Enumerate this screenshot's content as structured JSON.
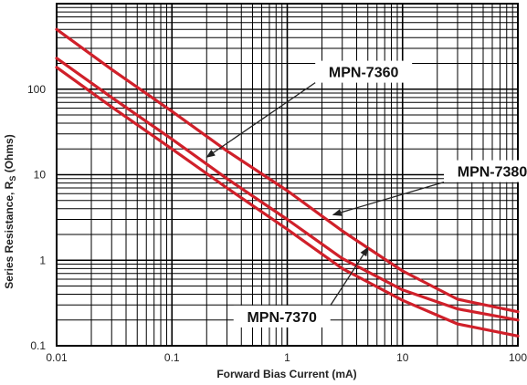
{
  "chart_data": {
    "type": "line",
    "title": "",
    "xlabel": "Forward  Bias Current (mA)",
    "ylabel_main": "Series Resistance, R",
    "ylabel_sub": "S",
    "ylabel_unit": " (Ohms)",
    "x_scale": "log",
    "y_scale": "log",
    "xlim": [
      0.01,
      100
    ],
    "ylim": [
      0.1,
      1000
    ],
    "grid": true,
    "x_ticks": [
      {
        "value": 0.01,
        "label": "0.01"
      },
      {
        "value": 0.1,
        "label": "0.1"
      },
      {
        "value": 1,
        "label": "1"
      },
      {
        "value": 10,
        "label": "10"
      },
      {
        "value": 100,
        "label": "100"
      }
    ],
    "y_ticks": [
      {
        "value": 0.1,
        "label": "0.1"
      },
      {
        "value": 1,
        "label": "1"
      },
      {
        "value": 10,
        "label": "10"
      },
      {
        "value": 100,
        "label": "100"
      }
    ],
    "line_color": "#d0202a",
    "series": [
      {
        "name": "MPN-7360",
        "x": [
          0.01,
          0.03,
          0.1,
          0.3,
          1,
          3,
          10,
          30,
          100
        ],
        "y": [
          500,
          170,
          55,
          19,
          6.5,
          2.2,
          0.75,
          0.35,
          0.25
        ]
      },
      {
        "name": "MPN-7380",
        "x": [
          0.01,
          0.03,
          0.1,
          0.3,
          1,
          3,
          10,
          30,
          100
        ],
        "y": [
          230,
          80,
          26,
          9,
          3,
          1.05,
          0.45,
          0.27,
          0.2
        ]
      },
      {
        "name": "MPN-7370",
        "x": [
          0.01,
          0.03,
          0.1,
          0.3,
          1,
          3,
          10,
          30,
          100
        ],
        "y": [
          180,
          62,
          20,
          7,
          2.3,
          0.8,
          0.34,
          0.18,
          0.13
        ]
      }
    ],
    "callouts": [
      {
        "label": "MPN-7360",
        "series": "MPN-7360",
        "box": {
          "x": 4.6,
          "y": 160
        },
        "target": {
          "x": 0.2,
          "y": 16
        }
      },
      {
        "label": "MPN-7380",
        "series": "MPN-7380",
        "box": {
          "x": 60,
          "y": 11
        },
        "target": {
          "x": 2.5,
          "y": 3.4
        }
      },
      {
        "label": "MPN-7370",
        "series": "MPN-7370",
        "box": {
          "x": 0.9,
          "y": 0.22
        },
        "target": {
          "x": 5,
          "y": 1.4
        }
      }
    ]
  }
}
